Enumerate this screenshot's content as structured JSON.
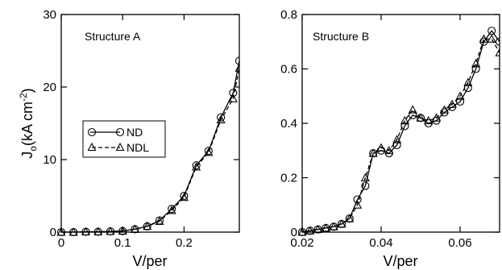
{
  "chart_data": [
    {
      "type": "line",
      "annotation": "Structure A",
      "xlabel": "V/per",
      "ylabel_main": "J",
      "ylabel_sub": "o",
      "ylabel_rest": "(kA cm",
      "ylabel_sup": "-2",
      "ylabel_close": ")",
      "xlim": [
        0,
        0.29
      ],
      "ylim": [
        0,
        30
      ],
      "xticks": [
        0,
        0.1,
        0.2
      ],
      "xtick_labels": [
        "0",
        "0.1",
        "0.2"
      ],
      "yticks": [
        0,
        10,
        20,
        30
      ],
      "ytick_labels": [
        "0",
        "10",
        "20",
        "30"
      ],
      "legend": {
        "placement": "middle-left",
        "entries": [
          "ND",
          "NDL"
        ]
      },
      "series": [
        {
          "name": "ND",
          "marker": "circle",
          "linestyle": "solid",
          "x": [
            0,
            0.02,
            0.04,
            0.06,
            0.08,
            0.1,
            0.12,
            0.14,
            0.16,
            0.18,
            0.2,
            0.22,
            0.24,
            0.26,
            0.28,
            0.29
          ],
          "y": [
            0,
            0,
            0.05,
            0.05,
            0.1,
            0.15,
            0.4,
            0.8,
            1.6,
            3.2,
            5.0,
            9.2,
            11.2,
            15.8,
            19.2,
            23.6
          ]
        },
        {
          "name": "NDL",
          "marker": "triangle",
          "linestyle": "dashed",
          "x": [
            0,
            0.02,
            0.04,
            0.06,
            0.08,
            0.1,
            0.12,
            0.14,
            0.16,
            0.18,
            0.2,
            0.22,
            0.24,
            0.26,
            0.28,
            0.29
          ],
          "y": [
            0,
            0,
            0.05,
            0.05,
            0.1,
            0.15,
            0.4,
            0.8,
            1.5,
            3.0,
            4.8,
            9.0,
            11.0,
            15.5,
            18.4,
            22.6
          ]
        }
      ]
    },
    {
      "type": "line",
      "annotation": "Structure B",
      "xlabel": "V/per",
      "xlim": [
        0.02,
        0.07
      ],
      "ylim": [
        0,
        0.8
      ],
      "xticks": [
        0.02,
        0.04,
        0.06
      ],
      "xtick_labels": [
        "0.02",
        "0.04",
        "0.06"
      ],
      "yticks": [
        0,
        0.2,
        0.4,
        0.6,
        0.8
      ],
      "ytick_labels": [
        "0",
        "0.2",
        "0.4",
        "0.6",
        "0.8"
      ],
      "series": [
        {
          "name": "ND",
          "marker": "circle",
          "linestyle": "solid",
          "x": [
            0.02,
            0.022,
            0.024,
            0.026,
            0.028,
            0.03,
            0.032,
            0.034,
            0.036,
            0.038,
            0.04,
            0.042,
            0.044,
            0.046,
            0.048,
            0.05,
            0.052,
            0.054,
            0.056,
            0.058,
            0.06,
            0.062,
            0.064,
            0.066,
            0.068,
            0.07
          ],
          "y": [
            0.0,
            0.005,
            0.01,
            0.015,
            0.02,
            0.03,
            0.05,
            0.12,
            0.17,
            0.29,
            0.3,
            0.29,
            0.32,
            0.39,
            0.43,
            0.42,
            0.4,
            0.41,
            0.44,
            0.46,
            0.48,
            0.53,
            0.6,
            0.7,
            0.74,
            0.7
          ]
        },
        {
          "name": "NDL",
          "marker": "triangle",
          "linestyle": "dashed",
          "x": [
            0.02,
            0.022,
            0.024,
            0.026,
            0.028,
            0.03,
            0.032,
            0.034,
            0.036,
            0.038,
            0.04,
            0.042,
            0.044,
            0.046,
            0.048,
            0.05,
            0.052,
            0.054,
            0.056,
            0.058,
            0.06,
            0.062,
            0.064,
            0.066,
            0.068,
            0.07
          ],
          "y": [
            0.0,
            0.005,
            0.01,
            0.015,
            0.02,
            0.03,
            0.05,
            0.1,
            0.2,
            0.29,
            0.31,
            0.3,
            0.34,
            0.41,
            0.45,
            0.42,
            0.41,
            0.42,
            0.45,
            0.47,
            0.5,
            0.55,
            0.62,
            0.71,
            0.71,
            0.66
          ]
        }
      ]
    }
  ]
}
